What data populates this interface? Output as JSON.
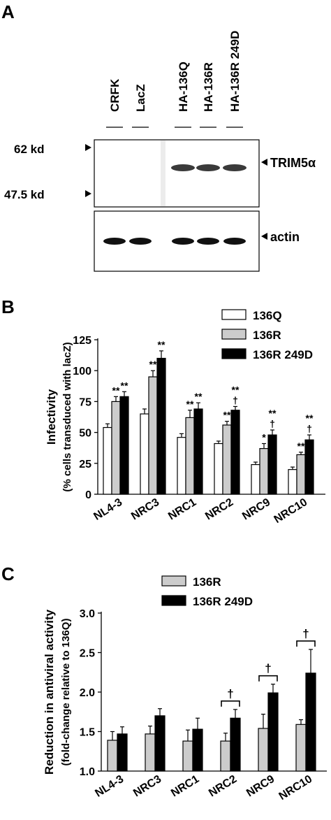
{
  "panelA": {
    "label": "A",
    "lanes": [
      "CRFK",
      "LacZ",
      "HA-136Q",
      "HA-136R",
      "HA-136R 249D"
    ],
    "markers": [
      "62 kd",
      "47.5 kd"
    ],
    "band_labels": [
      "TRIM5α",
      "actin"
    ]
  },
  "chart_data": [
    {
      "panel": "B",
      "type": "bar",
      "categories": [
        "NL4-3",
        "NRC3",
        "NRC1",
        "NRC2",
        "NRC9",
        "NRC10"
      ],
      "series": [
        {
          "name": "136Q",
          "color": "#ffffff",
          "values": [
            54,
            65,
            46,
            41,
            24,
            20
          ],
          "errors": [
            3,
            4,
            3,
            2,
            2,
            2
          ],
          "marks": [
            "",
            "",
            "",
            "",
            "",
            ""
          ]
        },
        {
          "name": "136R",
          "color": "#cccccc",
          "values": [
            75,
            95,
            62,
            56,
            37,
            32
          ],
          "errors": [
            4,
            5,
            6,
            3,
            4,
            2
          ],
          "marks": [
            "**",
            "**",
            "**",
            "**",
            "*",
            "**"
          ]
        },
        {
          "name": "136R 249D",
          "color": "#000000",
          "values": [
            79,
            110,
            69,
            68,
            48,
            44
          ],
          "errors": [
            4,
            6,
            5,
            3,
            4,
            4
          ],
          "marks": [
            "**",
            "**",
            "**",
            "**\n†",
            "**\n†",
            "**\n†"
          ]
        }
      ],
      "ylabel": "Infectivity",
      "ylabel2": "(% cells transduced with lacZ)",
      "ylim": [
        0,
        125
      ],
      "yticks": [
        0,
        25,
        50,
        75,
        100,
        125
      ],
      "legend": "top-right"
    },
    {
      "panel": "C",
      "type": "bar",
      "categories": [
        "NL4-3",
        "NRC3",
        "NRC1",
        "NRC2",
        "NRC9",
        "NRC10"
      ],
      "series": [
        {
          "name": "136R",
          "color": "#cccccc",
          "values": [
            1.39,
            1.47,
            1.38,
            1.38,
            1.54,
            1.59
          ],
          "errors": [
            0.11,
            0.1,
            0.14,
            0.1,
            0.18,
            0.06
          ]
        },
        {
          "name": "136R 249D",
          "color": "#000000",
          "values": [
            1.47,
            1.7,
            1.53,
            1.67,
            1.99,
            2.24
          ],
          "errors": [
            0.09,
            0.09,
            0.14,
            0.11,
            0.11,
            0.3
          ]
        }
      ],
      "brackets": [
        "",
        "",
        "",
        "†",
        "†",
        "†"
      ],
      "ylabel": "Reduction in antiviral activity",
      "ylabel2": "(fold-change relative to 136Q)",
      "ylim": [
        1.0,
        3.0
      ],
      "yticks": [
        "1.0",
        "1.5",
        "2.0",
        "2.5",
        "3.0"
      ],
      "legend": "top-left"
    }
  ]
}
